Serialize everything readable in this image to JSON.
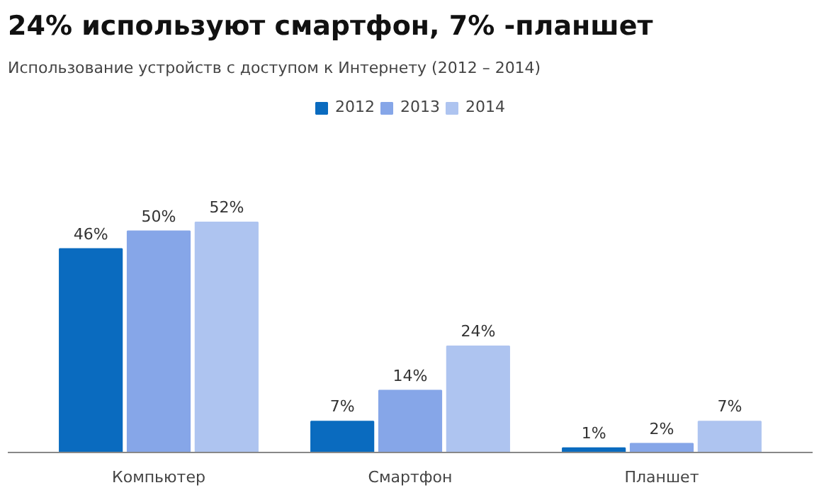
{
  "chart_data": {
    "type": "bar",
    "title": "24% используют смартфон, 7% -планшет",
    "subtitle": "Использование устройств с доступом к Интернету (2012 – 2014)",
    "categories": [
      "Компьютер",
      "Смартфон",
      "Планшет"
    ],
    "series": [
      {
        "name": "2012",
        "color": "#0a6bbf",
        "values": [
          46,
          7,
          1
        ],
        "value_labels": [
          "46%",
          "7%",
          "1%"
        ]
      },
      {
        "name": "2013",
        "color": "#86a6e8",
        "values": [
          50,
          14,
          2
        ],
        "value_labels": [
          "50%",
          "14%",
          "2%"
        ]
      },
      {
        "name": "2014",
        "color": "#aec4f0",
        "values": [
          52,
          24,
          7
        ],
        "value_labels": [
          "52%",
          "24%",
          "7%"
        ]
      }
    ],
    "legend": "top",
    "grid": false
  }
}
